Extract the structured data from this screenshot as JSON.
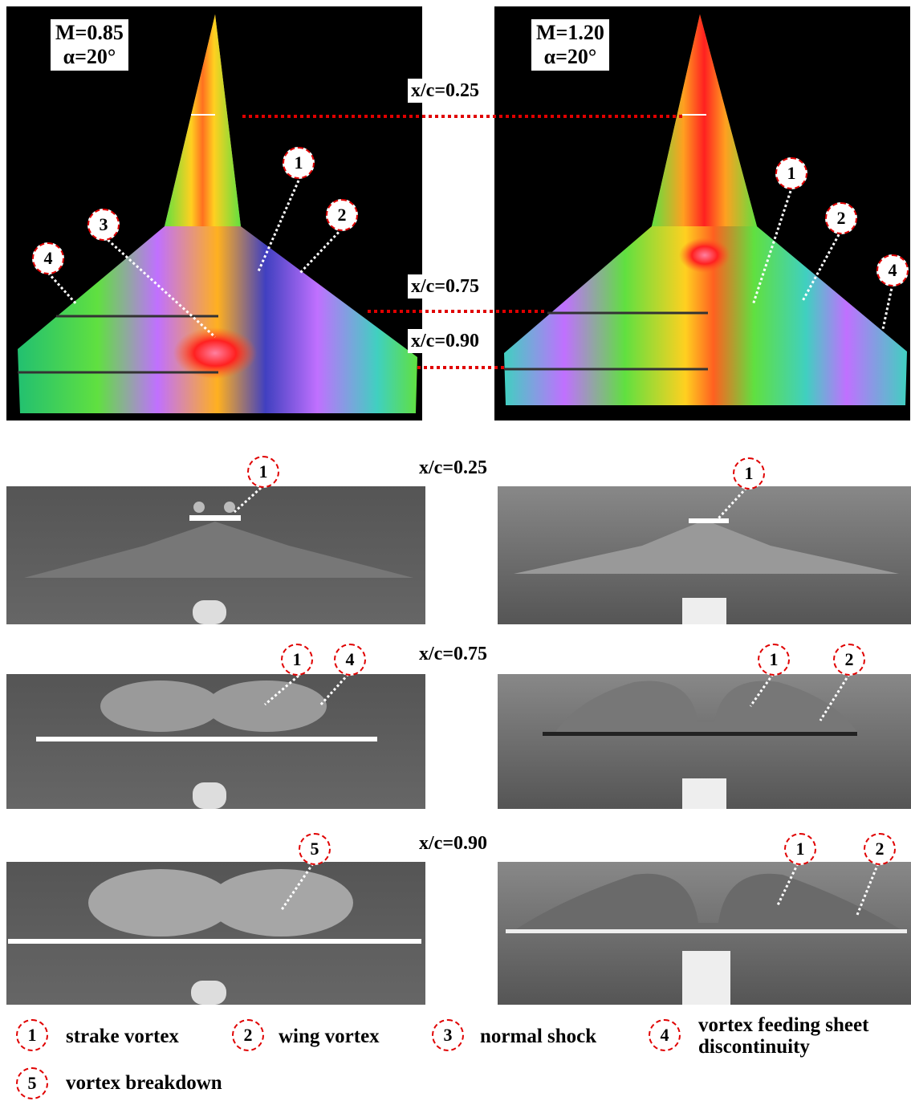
{
  "panels": {
    "left": {
      "mach": "M=0.85",
      "alpha": "α=20°"
    },
    "right": {
      "mach": "M=1.20",
      "alpha": "α=20°"
    }
  },
  "stations": [
    "x/c=0.25",
    "x/c=0.75",
    "x/c=0.90"
  ],
  "markers": [
    "1",
    "2",
    "3",
    "4",
    "5"
  ],
  "legend": [
    {
      "num": "1",
      "text": "strake vortex"
    },
    {
      "num": "2",
      "text": "wing vortex"
    },
    {
      "num": "3",
      "text": "normal shock"
    },
    {
      "num": "4",
      "text": "vortex feeding sheet discontinuity"
    },
    {
      "num": "5",
      "text": "vortex breakdown"
    }
  ],
  "colors": {
    "marker_border": "#e00000",
    "station_line": "#e00000",
    "background": "#000000"
  }
}
